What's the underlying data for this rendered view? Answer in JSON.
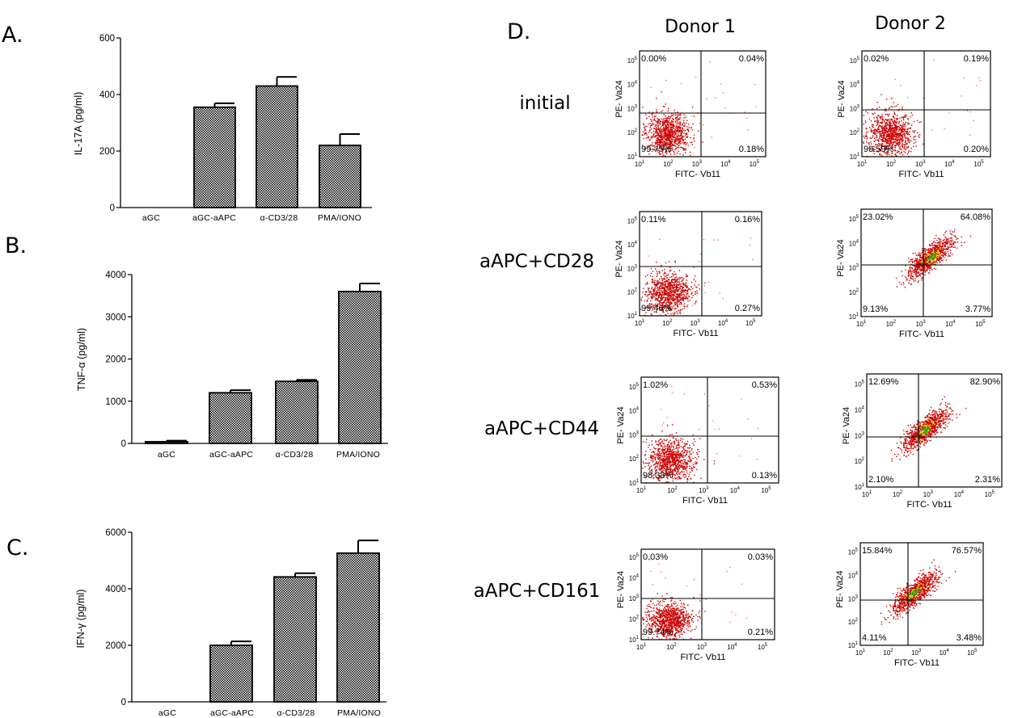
{
  "panel_letters": {
    "a": "A.",
    "b": "B.",
    "c": "C.",
    "d": "D."
  },
  "colors": {
    "bar_fill": "#9a9a9a",
    "dot_main": "#cc0000",
    "dot_light": "#e8503a",
    "dot_core_yellow": "#e6d400",
    "dot_core_green": "#2d9b3a"
  },
  "chart_data": [
    {
      "id": "A",
      "type": "bar",
      "title": "",
      "categories": [
        "aGC",
        "aGC-aAPC",
        "α-CD3/28",
        "PMA/IONO"
      ],
      "values": [
        0,
        355,
        430,
        220
      ],
      "errors": [
        0,
        14,
        32,
        40
      ],
      "ylabel": "IL-17A  (pg/ml)",
      "ylim": [
        0,
        600
      ],
      "yticks": [
        "0",
        "200",
        "400",
        "600"
      ],
      "ytick_values": [
        0,
        200,
        400,
        600
      ]
    },
    {
      "id": "B",
      "type": "bar",
      "title": "",
      "categories": [
        "aGC",
        "aGC-aAPC",
        "α-CD3/28",
        "PMA/IONO"
      ],
      "values": [
        40,
        1200,
        1470,
        3600
      ],
      "errors": [
        25,
        60,
        35,
        190
      ],
      "ylabel": "TNF-α (pg/ml)",
      "ylim": [
        0,
        4000
      ],
      "yticks": [
        "0",
        "1000",
        "2000",
        "3000",
        "4000"
      ],
      "ytick_values": [
        0,
        1000,
        2000,
        3000,
        4000
      ]
    },
    {
      "id": "C",
      "type": "bar",
      "title": "",
      "categories": [
        "aGC",
        "aGC-aAPC",
        "α-CD3/28",
        "PMA/IONO"
      ],
      "values": [
        0,
        2000,
        4420,
        5260
      ],
      "errors": [
        0,
        140,
        130,
        450
      ],
      "ylabel": "IFN-γ (pg/ml)",
      "ylim": [
        0,
        6000
      ],
      "yticks": [
        "0",
        "2000",
        "4000",
        "6000"
      ],
      "ytick_values": [
        0,
        2000,
        4000,
        6000
      ]
    },
    {
      "id": "D",
      "type": "scatter",
      "title": "",
      "donors": [
        "Donor 1",
        "Donor 2"
      ],
      "conditions": [
        "initial",
        "aAPC+CD28",
        "aAPC+CD44",
        "aAPC+CD161"
      ],
      "xlabel": "FITC- Vb11",
      "ylabel": "PE- Va24",
      "log_ticks": [
        "10",
        "10",
        "10",
        "10",
        "10"
      ],
      "log_exponents": [
        "1",
        "2",
        "3",
        "4",
        "5"
      ],
      "plots": [
        {
          "condition": "initial",
          "donor": "Donor 1",
          "quadrants": {
            "ul": "0.00%",
            "ur": "0.04%",
            "ll": "99.75%",
            "lr": "0.18%"
          }
        },
        {
          "condition": "initial",
          "donor": "Donor 2",
          "quadrants": {
            "ul": "0.02%",
            "ur": "0.19%",
            "ll": "99.59%",
            "lr": "0.20%"
          }
        },
        {
          "condition": "aAPC+CD28",
          "donor": "Donor 1",
          "quadrants": {
            "ul": "0.11%",
            "ur": "0.16%",
            "ll": "99.46%",
            "lr": "0.27%"
          }
        },
        {
          "condition": "aAPC+CD28",
          "donor": "Donor 2",
          "quadrants": {
            "ul": "23.02%",
            "ur": "64.08%",
            "ll": "9.13%",
            "lr": "3.77%"
          }
        },
        {
          "condition": "aAPC+CD44",
          "donor": "Donor 1",
          "quadrants": {
            "ul": "1.02%",
            "ur": "0.53%",
            "ll": "98.33%",
            "lr": "0.13%"
          }
        },
        {
          "condition": "aAPC+CD44",
          "donor": "Donor 2",
          "quadrants": {
            "ul": "12.69%",
            "ur": "82.90%",
            "ll": "2.10%",
            "lr": "2.31%"
          }
        },
        {
          "condition": "aAPC+CD161",
          "donor": "Donor 1",
          "quadrants": {
            "ul": "0.03%",
            "ur": "0.03%",
            "ll": "99.74%",
            "lr": "0.21%"
          }
        },
        {
          "condition": "aAPC+CD161",
          "donor": "Donor 2",
          "quadrants": {
            "ul": "15.84%",
            "ur": "76.57%",
            "ll": "4.11%",
            "lr": "3.48%"
          }
        }
      ]
    }
  ]
}
